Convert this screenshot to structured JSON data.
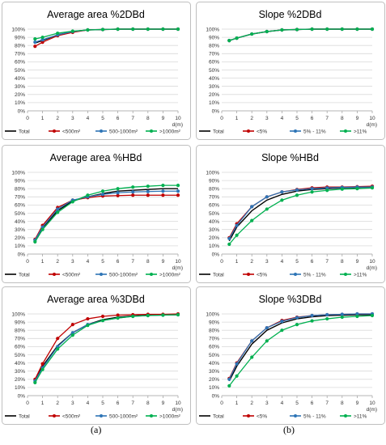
{
  "figure": {
    "label_a": "(a)",
    "label_b": "(b)"
  },
  "chart_data": [
    {
      "type": "line",
      "title": "Average area %2DBd",
      "x": [
        0.5,
        1,
        2,
        3,
        4,
        5,
        6,
        7,
        8,
        9,
        10
      ],
      "xticks": [
        "0",
        "1",
        "2",
        "3",
        "4",
        "5",
        "6",
        "7",
        "8",
        "9",
        "10"
      ],
      "xlabel": "d(m)",
      "ylim": [
        0,
        100
      ],
      "yticks": [
        "0%",
        "10%",
        "20%",
        "30%",
        "40%",
        "50%",
        "60%",
        "70%",
        "80%",
        "90%",
        "100%"
      ],
      "grid": true,
      "legend_position": "bottom",
      "series": [
        {
          "name": "Total",
          "color": "#000000",
          "values": [
            83,
            86,
            93,
            97,
            99,
            99.5,
            100,
            100,
            100,
            100,
            100
          ]
        },
        {
          "name": "<500m²",
          "color": "#c00000",
          "values": [
            79,
            84,
            92,
            96,
            99,
            99.5,
            100,
            100,
            100,
            100,
            100
          ]
        },
        {
          "name": "500-1000m²",
          "color": "#2e75b6",
          "values": [
            84,
            87,
            93,
            97,
            99,
            99.5,
            100,
            100,
            100,
            100,
            100
          ]
        },
        {
          "name": ">1000m²",
          "color": "#00b050",
          "values": [
            88,
            90,
            95,
            97.5,
            99,
            99.5,
            100,
            100,
            100,
            100,
            100
          ]
        }
      ]
    },
    {
      "type": "line",
      "title": "Slope %2DBd",
      "x": [
        0.5,
        1,
        2,
        3,
        4,
        5,
        6,
        7,
        8,
        9,
        10
      ],
      "xticks": [
        "0",
        "1",
        "2",
        "3",
        "4",
        "5",
        "6",
        "7",
        "8",
        "9",
        "10"
      ],
      "xlabel": "d(m)",
      "ylim": [
        0,
        100
      ],
      "yticks": [
        "0%",
        "10%",
        "20%",
        "30%",
        "40%",
        "50%",
        "60%",
        "70%",
        "80%",
        "90%",
        "100%"
      ],
      "grid": true,
      "legend_position": "bottom",
      "series": [
        {
          "name": "Total",
          "color": "#000000",
          "values": [
            86,
            89,
            94,
            97,
            99,
            99.5,
            100,
            100,
            100,
            100,
            100
          ]
        },
        {
          "name": "<5%",
          "color": "#c00000",
          "values": [
            86,
            89,
            94,
            97,
            99,
            99.5,
            100,
            100,
            100,
            100,
            100
          ]
        },
        {
          "name": "5% - 11%",
          "color": "#2e75b6",
          "values": [
            86,
            89,
            94,
            97,
            99,
            99.5,
            100,
            100,
            100,
            100,
            100
          ]
        },
        {
          "name": ">11%",
          "color": "#00b050",
          "values": [
            86,
            89,
            94,
            97,
            99,
            99.5,
            100,
            100,
            100,
            100,
            100
          ]
        }
      ]
    },
    {
      "type": "line",
      "title": "Average area %HBd",
      "x": [
        0.5,
        1,
        2,
        3,
        4,
        5,
        6,
        7,
        8,
        9,
        10
      ],
      "xticks": [
        "0",
        "1",
        "2",
        "3",
        "4",
        "5",
        "6",
        "7",
        "8",
        "9",
        "10"
      ],
      "xlabel": "d(m)",
      "ylim": [
        0,
        100
      ],
      "yticks": [
        "0%",
        "10%",
        "20%",
        "30%",
        "40%",
        "50%",
        "60%",
        "70%",
        "80%",
        "90%",
        "100%"
      ],
      "grid": true,
      "legend_position": "bottom",
      "series": [
        {
          "name": "Total",
          "color": "#000000",
          "values": [
            16,
            32,
            53,
            65,
            70,
            74,
            77,
            78,
            79,
            80,
            80
          ]
        },
        {
          "name": "<500m²",
          "color": "#c00000",
          "values": [
            18,
            35,
            57,
            66,
            69,
            71,
            71.5,
            72,
            72,
            72,
            72
          ]
        },
        {
          "name": "500-1000m²",
          "color": "#2e75b6",
          "values": [
            17,
            33,
            55,
            66,
            70,
            73,
            75,
            76,
            76.5,
            77,
            77
          ]
        },
        {
          "name": ">1000m²",
          "color": "#00b050",
          "values": [
            15,
            30,
            51,
            64,
            72,
            77,
            80,
            82,
            83,
            84,
            84
          ]
        }
      ]
    },
    {
      "type": "line",
      "title": "Slope %HBd",
      "x": [
        0.5,
        1,
        2,
        3,
        4,
        5,
        6,
        7,
        8,
        9,
        10
      ],
      "xticks": [
        "0",
        "1",
        "2",
        "3",
        "4",
        "5",
        "6",
        "7",
        "8",
        "9",
        "10"
      ],
      "xlabel": "d(m)",
      "ylim": [
        0,
        100
      ],
      "yticks": [
        "0%",
        "10%",
        "20%",
        "30%",
        "40%",
        "50%",
        "60%",
        "70%",
        "80%",
        "90%",
        "100%"
      ],
      "grid": true,
      "legend_position": "bottom",
      "series": [
        {
          "name": "Total",
          "color": "#000000",
          "values": [
            16,
            33,
            53,
            66,
            73,
            77,
            79,
            80,
            81,
            81.5,
            82
          ]
        },
        {
          "name": "<5%",
          "color": "#c00000",
          "values": [
            20,
            37,
            58,
            70,
            76,
            79,
            81,
            82,
            82,
            82.5,
            83
          ]
        },
        {
          "name": "5% - 11%",
          "color": "#2e75b6",
          "values": [
            19,
            35,
            58,
            70,
            76,
            78.5,
            80,
            81,
            81.5,
            82,
            82
          ]
        },
        {
          "name": ">11%",
          "color": "#00b050",
          "values": [
            12,
            23,
            41,
            55,
            66,
            72,
            76,
            78,
            79.5,
            80,
            81
          ]
        }
      ]
    },
    {
      "type": "line",
      "title": "Average area %3DBd",
      "x": [
        0.5,
        1,
        2,
        3,
        4,
        5,
        6,
        7,
        8,
        9,
        10
      ],
      "xticks": [
        "0",
        "1",
        "2",
        "3",
        "4",
        "5",
        "6",
        "7",
        "8",
        "9",
        "10"
      ],
      "xlabel": "d(m)",
      "ylim": [
        0,
        100
      ],
      "yticks": [
        "0%",
        "10%",
        "20%",
        "30%",
        "40%",
        "50%",
        "60%",
        "70%",
        "80%",
        "90%",
        "100%"
      ],
      "grid": true,
      "legend_position": "bottom",
      "series": [
        {
          "name": "Total",
          "color": "#000000",
          "values": [
            18,
            36,
            61,
            77,
            87,
            93,
            96,
            97.5,
            98.5,
            99,
            99
          ]
        },
        {
          "name": "<500m²",
          "color": "#c00000",
          "values": [
            20,
            39,
            70,
            87,
            94,
            97,
            98.5,
            99,
            99.5,
            99.5,
            100
          ]
        },
        {
          "name": "500-1000m²",
          "color": "#2e75b6",
          "values": [
            18,
            34,
            60,
            77,
            87,
            92,
            95,
            97,
            98,
            98.5,
            99
          ]
        },
        {
          "name": ">1000m²",
          "color": "#00b050",
          "values": [
            16,
            32,
            57,
            74,
            86,
            92,
            95,
            97,
            98,
            98.5,
            99
          ]
        }
      ]
    },
    {
      "type": "line",
      "title": "Slope %3DBd",
      "x": [
        0.5,
        1,
        2,
        3,
        4,
        5,
        6,
        7,
        8,
        9,
        10
      ],
      "xticks": [
        "0",
        "1",
        "2",
        "3",
        "4",
        "5",
        "6",
        "7",
        "8",
        "9",
        "10"
      ],
      "xlabel": "d(m)",
      "ylim": [
        0,
        100
      ],
      "yticks": [
        "0%",
        "10%",
        "20%",
        "30%",
        "40%",
        "50%",
        "60%",
        "70%",
        "80%",
        "90%",
        "100%"
      ],
      "grid": true,
      "legend_position": "bottom",
      "series": [
        {
          "name": "Total",
          "color": "#000000",
          "values": [
            18,
            36,
            63,
            80,
            89,
            94,
            96.5,
            98,
            98.5,
            99,
            99
          ]
        },
        {
          "name": "<5%",
          "color": "#c00000",
          "values": [
            21,
            40,
            67,
            83,
            92,
            96,
            98,
            99,
            99.5,
            100,
            100
          ]
        },
        {
          "name": "5% - 11%",
          "color": "#2e75b6",
          "values": [
            20,
            39,
            67,
            83,
            91,
            95.5,
            98,
            99,
            99.5,
            100,
            100
          ]
        },
        {
          "name": ">11%",
          "color": "#00b050",
          "values": [
            12,
            24,
            47,
            67,
            80,
            87,
            91.5,
            94,
            96,
            97,
            98
          ]
        }
      ]
    }
  ]
}
